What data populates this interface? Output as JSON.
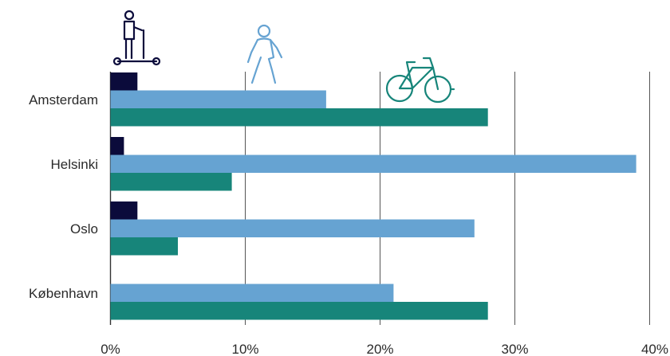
{
  "chart_data": {
    "type": "bar",
    "orientation": "horizontal",
    "categories": [
      "Amsterdam",
      "Helsinki",
      "Oslo",
      "København"
    ],
    "series": [
      {
        "icon": "kick-scooter-icon",
        "color": "#0b0b3b",
        "values": [
          2,
          1,
          2,
          0
        ]
      },
      {
        "icon": "pedestrian-icon",
        "color": "#66a3d2",
        "values": [
          16,
          39,
          27,
          21
        ]
      },
      {
        "icon": "bicycle-icon",
        "color": "#17857a",
        "values": [
          28,
          9,
          5,
          28
        ]
      }
    ],
    "x_ticks": [
      "0%",
      "10%",
      "20%",
      "30%",
      "40%"
    ],
    "xlim": [
      0,
      40
    ],
    "grid": "vertical"
  }
}
